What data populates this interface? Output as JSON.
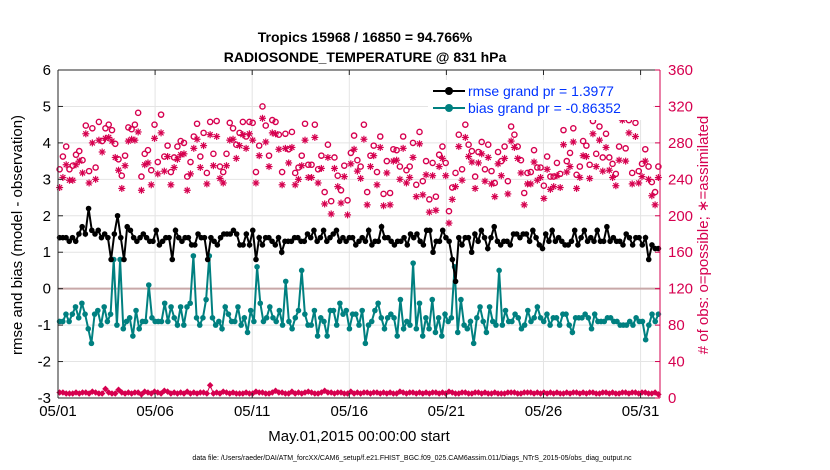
{
  "chart_data": {
    "type": "line",
    "title_line1": "Tropics 15968 / 16850 = 94.766%",
    "title_line2": "RADIOSONDE_TEMPERATURE @ 831 hPa",
    "xlabel": "May.01,2015 00:00:00 start",
    "ylabel_left": "rmse and bias (model - observation)",
    "ylabel_right": "# of obs: o=possible; ∗=assimilated",
    "footer": "data file: /Users/raeder/DAI/ATM_forcXX/CAM6_setup/f.e21.FHIST_BGC.f09_025.CAM6assim.011/Diags_NTrS_2015-05/obs_diag_output.nc",
    "xlim": [
      1,
      32
    ],
    "ylim_left": [
      -3,
      6
    ],
    "ylim_right": [
      0,
      360
    ],
    "x_ticks": [
      1,
      6,
      11,
      16,
      21,
      26,
      31
    ],
    "x_tick_labels": [
      "05/01",
      "05/06",
      "05/11",
      "05/16",
      "05/21",
      "05/26",
      "05/31"
    ],
    "y_ticks_left": [
      -3,
      -2,
      -1,
      0,
      1,
      2,
      3,
      4,
      5,
      6
    ],
    "y_tick_labels_left": [
      "-3",
      "-2",
      "-1",
      "0",
      "1",
      "2",
      "3",
      "4",
      "5",
      "6"
    ],
    "y_ticks_right": [
      0,
      40,
      80,
      120,
      160,
      200,
      240,
      280,
      320,
      360
    ],
    "y_tick_labels_right": [
      "0",
      "40",
      "80",
      "120",
      "160",
      "200",
      "240",
      "280",
      "320",
      "360"
    ],
    "legend": {
      "position": "top-right",
      "entries": [
        "rmse grand pr = 1.3977",
        "bias grand pr = -0.86352"
      ]
    },
    "colors": {
      "rmse": "#000000",
      "bias": "#008080",
      "obs": "#d6004f",
      "zero_line": "#c8a8a8",
      "axes": "#262626",
      "legend_text": "#0033ff"
    },
    "series": [
      {
        "name": "rmse",
        "axis": "left",
        "values": [
          1.4,
          1.4,
          1.4,
          1.3,
          1.4,
          1.3,
          1.5,
          1.7,
          1.5,
          2.2,
          1.6,
          1.5,
          1.6,
          1.4,
          1.5,
          1.4,
          0.8,
          1.5,
          2,
          1.4,
          0.8,
          1.7,
          1.6,
          1.4,
          1.3,
          1.4,
          1.5,
          1.4,
          1.3,
          1.3,
          1.6,
          1.2,
          1.3,
          1.4,
          1.4,
          0.8,
          1.6,
          1.4,
          1.3,
          1.4,
          1.4,
          1.2,
          1.2,
          1.5,
          1.4,
          1.4,
          0.8,
          1.4,
          1.3,
          1.2,
          1.4,
          1.5,
          1.5,
          1.5,
          1.6,
          1.5,
          1.2,
          1.2,
          1.5,
          1.2,
          1.6,
          0.8,
          1.4,
          1.2,
          1.4,
          1.4,
          1.3,
          1.2,
          1.4,
          1,
          1.3,
          1.3,
          1.3,
          1.4,
          1.4,
          1.3,
          1.3,
          1.5,
          1.4,
          1.6,
          1.3,
          1.4,
          1.6,
          1.3,
          1.4,
          1.5,
          1.6,
          1.3,
          1.4,
          1.3,
          1.4,
          1.4,
          1.2,
          1.3,
          1.4,
          1.3,
          1.6,
          1.2,
          1.3,
          1.3,
          1.7,
          1.4,
          1.4,
          1.3,
          1.2,
          1.3,
          1.3,
          1.4,
          1.2,
          1.5,
          1.4,
          1.5,
          1.3,
          1.2,
          1.6,
          1.6,
          1,
          1.3,
          1.3,
          1.6,
          1.4,
          1.3,
          0.8,
          0.2,
          1.4,
          1.2,
          1.4,
          1.4,
          1,
          1.5,
          1.3,
          1.6,
          1.4,
          1.1,
          1.4,
          1.7,
          1.3,
          1.2,
          1.3,
          1.3,
          1.2,
          1.5,
          1.5,
          1.4,
          1.5,
          1.5,
          1.3,
          1.6,
          1.4,
          1.2,
          1.1,
          1.5,
          1.3,
          1.6,
          1.3,
          1.4,
          1.3,
          1.2,
          1.2,
          1.3,
          1.6,
          1.2,
          1.4,
          1.6,
          1.3,
          1.4,
          1.3,
          1.6,
          1.3,
          1.3,
          1.7,
          1.3,
          1.4,
          1.3,
          1.3,
          1.2,
          1.5,
          1.4,
          1.2,
          1.4,
          1.4,
          1.2,
          1.4,
          0.8,
          1.2,
          1.1,
          1.1
        ]
      },
      {
        "name": "bias",
        "axis": "left",
        "values": [
          -0.9,
          -0.9,
          -0.7,
          -0.9,
          -0.7,
          -0.5,
          -0.8,
          -0.4,
          -0.7,
          -1.1,
          -1.5,
          -0.7,
          -0.6,
          -1,
          -0.5,
          -0.9,
          -0.7,
          0.8,
          -1,
          0.8,
          -1.1,
          -0.9,
          -0.8,
          -1.3,
          -0.6,
          -1.1,
          -0.9,
          -0.9,
          0.1,
          -0.8,
          -0.9,
          -0.9,
          -0.9,
          -0.4,
          -0.9,
          -0.5,
          -0.8,
          -1,
          -0.5,
          -1,
          -0.5,
          -0.4,
          0.9,
          -0.8,
          -1,
          -0.8,
          -0.3,
          0.9,
          -0.8,
          -1,
          -0.9,
          -1.1,
          -0.5,
          -0.7,
          -0.9,
          -0.9,
          -0.5,
          -1,
          -0.8,
          -1.2,
          -0.6,
          -0.9,
          0.6,
          -0.4,
          -0.9,
          -0.8,
          -0.5,
          -0.8,
          -0.9,
          -0.6,
          -1,
          0.2,
          -0.9,
          -1.1,
          -0.8,
          -0.6,
          0.5,
          -0.7,
          -1,
          -1,
          -0.6,
          -1.3,
          -0.8,
          -0.9,
          -1.3,
          -0.6,
          -0.6,
          -1,
          -0.4,
          -0.7,
          -0.6,
          -1.1,
          -0.7,
          -0.7,
          -1,
          -0.6,
          -1.5,
          -1,
          -0.9,
          -0.6,
          -0.4,
          -0.8,
          -1.1,
          -0.8,
          -0.7,
          -0.8,
          -1.3,
          -0.3,
          -1.1,
          -0.9,
          -1,
          0.7,
          -1.1,
          -0.4,
          -1.3,
          -0.8,
          -1.1,
          -0.3,
          -1.2,
          -0.8,
          -1.3,
          -0.7,
          -0.9,
          -0.8,
          0.6,
          -1.2,
          -0.3,
          -1,
          -1.1,
          -0.9,
          -1.5,
          -0.8,
          -0.5,
          -0.9,
          -1.2,
          -0.5,
          -0.9,
          -1,
          0.5,
          -1,
          -0.6,
          -0.9,
          -0.9,
          -0.7,
          -0.8,
          -1.1,
          -1,
          -0.6,
          -0.9,
          -0.8,
          -0.5,
          -0.8,
          -0.9,
          -0.7,
          -1,
          -0.8,
          -0.8,
          -1,
          -0.7,
          -0.7,
          -1,
          -1.2,
          -0.8,
          -0.8,
          -0.8,
          -0.7,
          -0.8,
          -1.1,
          -0.7,
          -0.9,
          -0.9,
          -0.9,
          -0.8,
          -0.8,
          -0.9,
          -0.9,
          -1,
          -1,
          -1,
          -0.9,
          -1,
          -0.8,
          -0.9,
          -0.9,
          -1.4,
          -1,
          -0.7,
          -0.9,
          -0.7
        ]
      },
      {
        "name": "possible",
        "axis": "right",
        "values": [
          251,
          265,
          276,
          251,
          255,
          267,
          271,
          261,
          299,
          249,
          296,
          253,
          303,
          282,
          296,
          300,
          294,
          279,
          262,
          244,
          266,
          297,
          295,
          300,
          313,
          243,
          268,
          272,
          250,
          300,
          259,
          311,
          265,
          277,
          248,
          264,
          276,
          282,
          280,
          243,
          259,
          287,
          301,
          265,
          291,
          247,
          303,
          268,
          304,
          254,
          248,
          268,
          302,
          296,
          278,
          291,
          303,
          287,
          303,
          302,
          248,
          277,
          320,
          299,
          266,
          305,
          303,
          289,
          248,
          290,
          273,
          292,
          247,
          253,
          266,
          301,
          256,
          256,
          300,
          251,
          266,
          226,
          278,
          216,
          264,
          244,
          228,
          255,
          217,
          269,
          288,
          261,
          254,
          300,
          226,
          266,
          277,
          248,
          287,
          224,
          260,
          225,
          273,
          272,
          254,
          287,
          250,
          254,
          280,
          234,
          292,
          238,
          260,
          218,
          258,
          221,
          267,
          276,
          258,
          205,
          231,
          247,
          289,
          251,
          300,
          278,
          271,
          243,
          270,
          281,
          251,
          278,
          249,
          236,
          270,
          260,
          276,
          238,
          298,
          289,
          276,
          261,
          225,
          247,
          248,
          272,
          253,
          253,
          233,
          265,
          243,
          243,
          258,
          246,
          294,
          260,
          269,
          296,
          245,
          254,
          282,
          277,
          256,
          304,
          268,
          298,
          264,
          290,
          264,
          257,
          246,
          276,
          320,
          274,
          305,
          247,
          302,
          249,
          257,
          273,
          254,
          237,
          226,
          254
        ]
      },
      {
        "name": "assimilated",
        "axis": "right",
        "values": [
          231,
          242,
          256,
          239,
          239,
          256,
          260,
          247,
          290,
          236,
          280,
          240,
          283,
          270,
          285,
          286,
          282,
          264,
          250,
          230,
          255,
          282,
          284,
          283,
          292,
          228,
          256,
          258,
          234,
          285,
          246,
          291,
          249,
          265,
          234,
          253,
          262,
          267,
          268,
          228,
          246,
          274,
          284,
          253,
          277,
          235,
          289,
          255,
          287,
          241,
          236,
          255,
          283,
          284,
          263,
          277,
          289,
          274,
          290,
          283,
          236,
          266,
          307,
          281,
          254,
          291,
          290,
          273,
          234,
          274,
          258,
          275,
          234,
          240,
          255,
          283,
          242,
          242,
          286,
          236,
          252,
          213,
          264,
          202,
          252,
          232,
          214,
          243,
          201,
          257,
          273,
          249,
          241,
          284,
          212,
          254,
          266,
          234,
          275,
          211,
          247,
          212,
          260,
          261,
          240,
          274,
          236,
          242,
          264,
          221,
          279,
          223,
          245,
          204,
          244,
          206,
          254,
          263,
          244,
          192,
          218,
          232,
          276,
          239,
          286,
          265,
          259,
          230,
          258,
          268,
          238,
          264,
          235,
          221,
          257,
          244,
          263,
          224,
          282,
          275,
          263,
          247,
          212,
          235,
          235,
          259,
          239,
          242,
          219,
          251,
          229,
          232,
          244,
          231,
          278,
          248,
          254,
          281,
          230,
          242,
          266,
          265,
          241,
          290,
          254,
          283,
          249,
          275,
          250,
          242,
          233,
          261,
          305,
          260,
          291,
          235,
          287,
          236,
          243,
          260,
          240,
          222,
          212,
          242
        ]
      },
      {
        "name": "bottom_obs",
        "axis": "right",
        "values": [
          6,
          6,
          5,
          5,
          5,
          6,
          5,
          6,
          6,
          5,
          7,
          6,
          5,
          5,
          10,
          6,
          5,
          5,
          9,
          6,
          5,
          6,
          5,
          6,
          6,
          4,
          7,
          6,
          5,
          7,
          6,
          5,
          8,
          7,
          5,
          6,
          5,
          6,
          5,
          7,
          5,
          6,
          5,
          6,
          6,
          5,
          14,
          5,
          6,
          5,
          7,
          6,
          5,
          6,
          5,
          5,
          5,
          6,
          5,
          5,
          7,
          6,
          6,
          5,
          5,
          6,
          8,
          6,
          6,
          5,
          5,
          7,
          5,
          6,
          5,
          6,
          7,
          6,
          5,
          5,
          6,
          8,
          6,
          6,
          5,
          6,
          6,
          5,
          5,
          7,
          5,
          6,
          5,
          6,
          6,
          5,
          6,
          6,
          5,
          6,
          5,
          6,
          5,
          5,
          7,
          6,
          5,
          6,
          6,
          5,
          6,
          5,
          6,
          5,
          6,
          6,
          5,
          6,
          5,
          7,
          6,
          5,
          5,
          6,
          6,
          5,
          5,
          6,
          6,
          5,
          6,
          5,
          5,
          6,
          5,
          5,
          5,
          6,
          6,
          6,
          5,
          5,
          6,
          6,
          6,
          5,
          6,
          5,
          6,
          5,
          6,
          5,
          6,
          5,
          5,
          6,
          5,
          6,
          6,
          5,
          6,
          5,
          6,
          6,
          5,
          5,
          6,
          6,
          5,
          6,
          5,
          5,
          6,
          6,
          5,
          6,
          6,
          5,
          6,
          6,
          5,
          5,
          6,
          4
        ]
      }
    ]
  }
}
